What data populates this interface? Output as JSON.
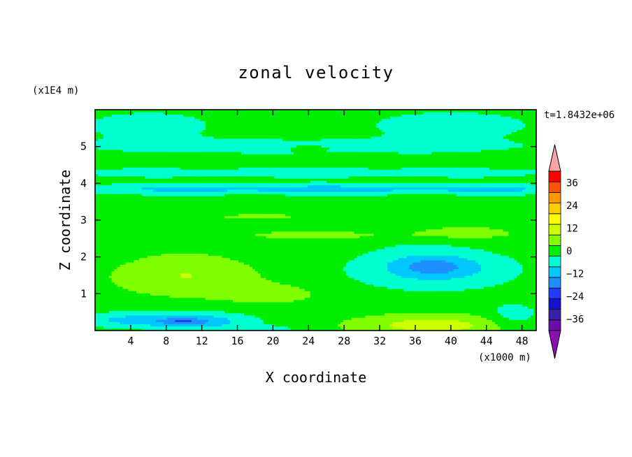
{
  "chart_data": {
    "type": "heatmap",
    "title": "zonal velocity",
    "xlabel": "X coordinate",
    "ylabel": "Z coordinate",
    "x_unit": "(x1000 m)",
    "y_unit": "(x1E4 m)",
    "time_label": "t=1.8432e+06",
    "xlim": [
      0,
      49.6
    ],
    "ylim": [
      0,
      6
    ],
    "x_ticks": [
      4,
      8,
      12,
      16,
      20,
      24,
      28,
      32,
      36,
      40,
      44,
      48
    ],
    "x_tick_labels": [
      "4",
      "8",
      "12",
      "16",
      "20",
      "24",
      "28",
      "32",
      "36",
      "40",
      "44",
      "48"
    ],
    "y_ticks": [
      1,
      2,
      3,
      4,
      5
    ],
    "y_tick_labels": [
      "1",
      "2",
      "3",
      "4",
      "5"
    ],
    "colorbar": {
      "levels": [
        -42,
        -36,
        -30,
        -24,
        -18,
        -12,
        -6,
        0,
        6,
        12,
        18,
        24,
        30,
        36,
        42
      ],
      "tick_values": [
        36,
        24,
        12,
        0,
        -12,
        -24,
        -36
      ],
      "tick_labels": [
        "36",
        "24",
        "12",
        "0",
        "−12",
        "−24",
        "−36"
      ],
      "colors": [
        "#6a0dad",
        "#3b1fa8",
        "#1414cc",
        "#1f3cff",
        "#1e90ff",
        "#00c8ff",
        "#00ffd0",
        "#00ee00",
        "#7fff00",
        "#ccff00",
        "#ffff00",
        "#ffcc00",
        "#ff9900",
        "#ff5500",
        "#ff0000",
        "#f4a6a6"
      ],
      "under_color": "#8a10b0",
      "over_color": "#f4a6a6"
    },
    "field": {
      "background_value": 3,
      "features": [
        {
          "x": 6,
          "z": 5.6,
          "sx": 9,
          "sz": 0.45,
          "amp": -5
        },
        {
          "x": 40,
          "z": 5.6,
          "sx": 10,
          "sz": 0.4,
          "amp": -6
        },
        {
          "x": 25,
          "z": 5.0,
          "sx": 30,
          "sz": 0.25,
          "amp": -5
        },
        {
          "x": 24,
          "z": 4.95,
          "sx": 2,
          "sz": 0.08,
          "amp": 6
        },
        {
          "x": 25,
          "z": 4.3,
          "sx": 40,
          "sz": 0.15,
          "amp": -6
        },
        {
          "x": 25,
          "z": 3.85,
          "sx": 40,
          "sz": 0.15,
          "amp": -11
        },
        {
          "x": 45,
          "z": 3.85,
          "sx": 3,
          "sz": 0.06,
          "amp": -5
        },
        {
          "x": 14,
          "z": 3.1,
          "sx": 9,
          "sz": 0.15,
          "amp": 4
        },
        {
          "x": 25,
          "z": 2.6,
          "sx": 20,
          "sz": 0.15,
          "amp": 4
        },
        {
          "x": 42,
          "z": 2.7,
          "sx": 8,
          "sz": 0.2,
          "amp": 3
        },
        {
          "x": 10,
          "z": 1.5,
          "sx": 8,
          "sz": 0.55,
          "amp": 9
        },
        {
          "x": 20,
          "z": 1.0,
          "sx": 6,
          "sz": 0.3,
          "amp": 5
        },
        {
          "x": 38,
          "z": 1.7,
          "sx": 9,
          "sz": 0.55,
          "amp": -11
        },
        {
          "x": 38,
          "z": 1.75,
          "sx": 4,
          "sz": 0.25,
          "amp": -8
        },
        {
          "x": 4,
          "z": 0.3,
          "sx": 7,
          "sz": 0.2,
          "amp": -10
        },
        {
          "x": 12,
          "z": 0.25,
          "sx": 6,
          "sz": 0.25,
          "amp": -11
        },
        {
          "x": 10,
          "z": 0.25,
          "sx": 2.5,
          "sz": 0.08,
          "amp": -8
        },
        {
          "x": 20,
          "z": 0.05,
          "sx": 2,
          "sz": 0.08,
          "amp": -8
        },
        {
          "x": 38,
          "z": 0.15,
          "sx": 9,
          "sz": 0.3,
          "amp": 12
        },
        {
          "x": 47,
          "z": 0.4,
          "sx": 3,
          "sz": 0.35,
          "amp": -7
        }
      ]
    }
  }
}
